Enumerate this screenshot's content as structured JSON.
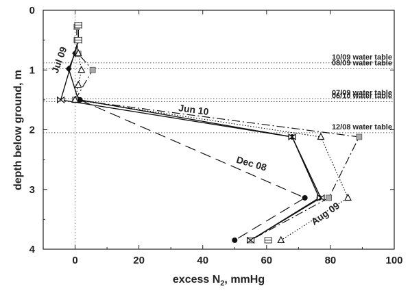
{
  "chart_data": {
    "type": "line",
    "xlabel": "excess N",
    "xlabel_sub": "2",
    "xlabel_unit": ", mmHg",
    "ylabel": "depth below ground, m",
    "xlim": [
      -10,
      100
    ],
    "ylim": [
      0,
      4
    ],
    "y_inverted": true,
    "x_ticks": [
      0,
      20,
      40,
      60,
      80,
      100
    ],
    "y_ticks": [
      0,
      1,
      2,
      3,
      4
    ],
    "grid": false,
    "water_tables": [
      {
        "label": "10/09 water table",
        "depth": 0.88
      },
      {
        "label": "08/09 water table",
        "depth": 0.98
      },
      {
        "label": "07/09 water table",
        "depth": 1.48
      },
      {
        "label": "06/10 water table",
        "depth": 1.53
      },
      {
        "label": "12/08 water table",
        "depth": 2.05
      }
    ],
    "series": [
      {
        "name": "Jul 09",
        "marker": "diamond",
        "style": "solid",
        "points": [
          [
            1,
            0.25
          ],
          [
            1,
            0.5
          ],
          [
            0,
            0.72
          ],
          [
            -2,
            0.98
          ],
          [
            1,
            1.5
          ]
        ]
      },
      {
        "name": "Jun 10",
        "marker": "circle",
        "style": "solid",
        "points": [
          [
            1.5,
            1.5
          ],
          [
            68,
            2.12
          ],
          [
            76.5,
            3.14
          ],
          [
            55,
            3.85
          ]
        ]
      },
      {
        "name": "Dec 08",
        "marker": "circle",
        "style": "dash",
        "points": [
          [
            1.5,
            1.5
          ],
          [
            72,
            3.14
          ],
          [
            50,
            3.85
          ]
        ]
      },
      {
        "name": "Aug 09",
        "marker": "gray-square",
        "style": "dashdot",
        "points": [
          [
            0.5,
            0.28
          ],
          [
            0.5,
            0.5
          ],
          [
            1,
            0.73
          ],
          [
            5.5,
            1.0
          ],
          [
            0,
            1.5
          ],
          [
            89,
            2.12
          ],
          [
            79.5,
            3.14
          ],
          [
            55,
            3.85
          ]
        ]
      },
      {
        "name": "",
        "marker": "triangle",
        "style": "dot",
        "points": [
          [
            1,
            0.72
          ],
          [
            2,
            1.0
          ],
          [
            1,
            1.25
          ],
          [
            0,
            1.5
          ],
          [
            77,
            2.12
          ],
          [
            85.5,
            3.14
          ],
          [
            64.5,
            3.85
          ]
        ]
      },
      {
        "name": "",
        "marker": "bowtie",
        "style": "solid",
        "points": [
          [
            1,
            0.25
          ],
          [
            1,
            0.5
          ],
          [
            -4.5,
            1.5
          ],
          [
            68,
            2.12
          ],
          [
            77,
            3.14
          ],
          [
            55,
            3.85
          ]
        ]
      },
      {
        "name": "",
        "marker": "hbar",
        "style": "none",
        "points": [
          [
            1,
            0.25
          ],
          [
            1,
            0.5
          ],
          [
            60.5,
            3.85
          ]
        ]
      }
    ],
    "annotations": [
      {
        "text": "Jul 09",
        "x": -4,
        "y": 0.85,
        "rotate": -70
      },
      {
        "text": "Jun 10",
        "x": 37,
        "y": 1.72,
        "rotate": 8
      },
      {
        "text": "Dec 08",
        "x": 55,
        "y": 2.62,
        "rotate": 16
      },
      {
        "text": "Aug 09",
        "x": 79,
        "y": 3.45,
        "rotate": -35
      }
    ]
  }
}
